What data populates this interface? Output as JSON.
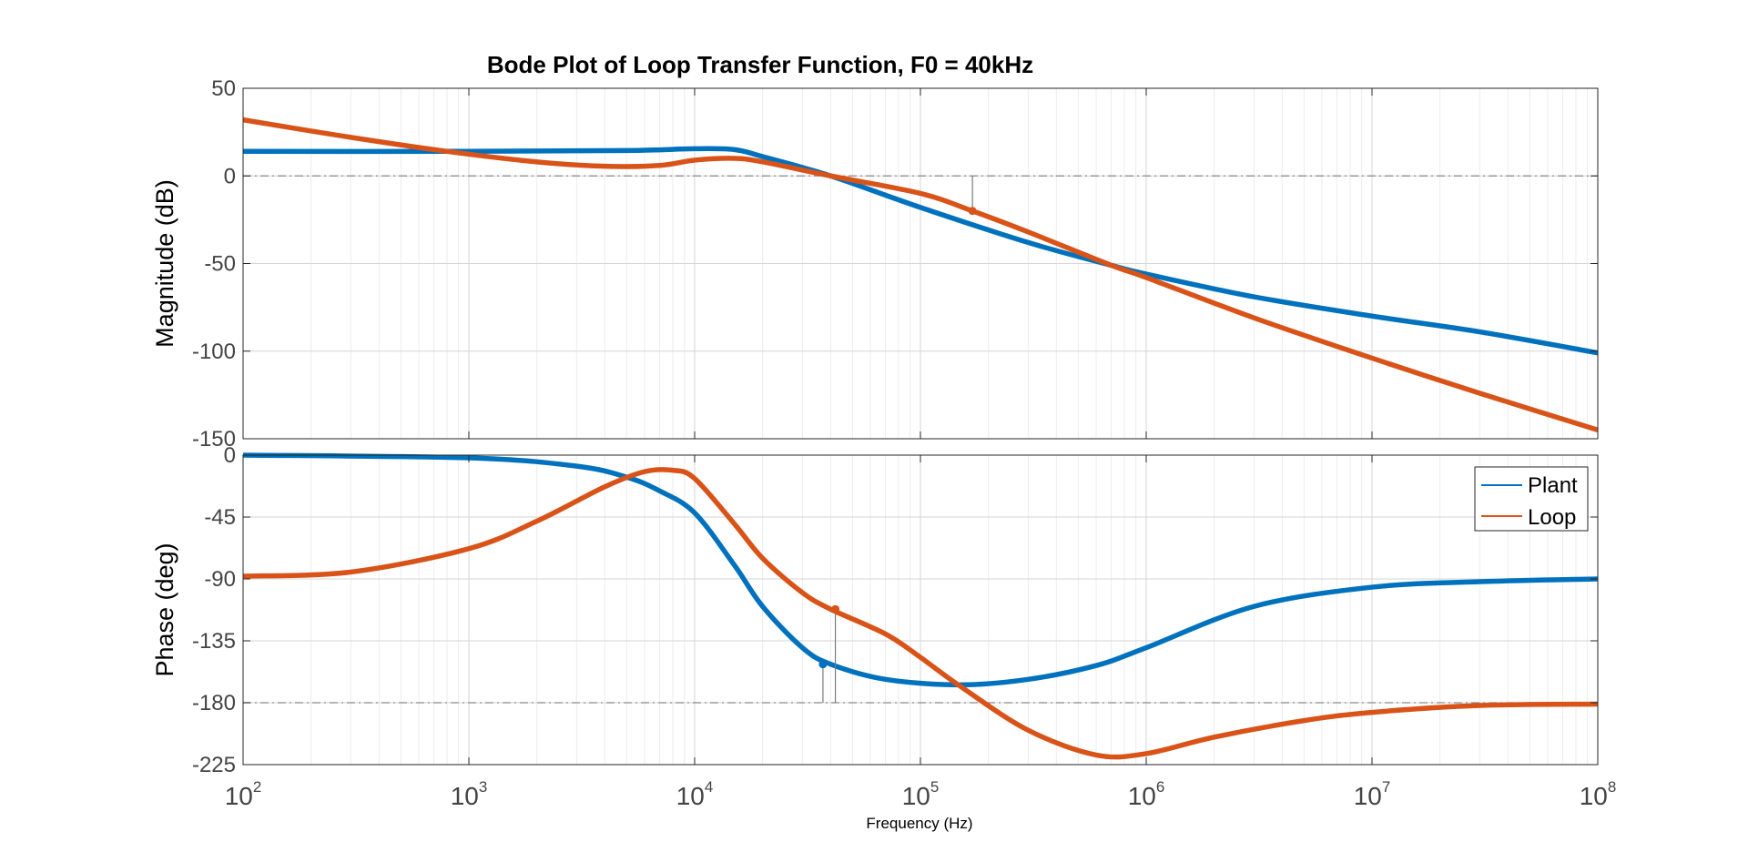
{
  "chart_data": {
    "type": "line",
    "title": "Bode Plot of Loop Transfer Function, F0 = 40kHz",
    "xlabel": "Frequency  (Hz)",
    "xscale": "log",
    "xlim": [
      100,
      100000000
    ],
    "x_ticks": [
      {
        "base": "10",
        "exp": "2"
      },
      {
        "base": "10",
        "exp": "3"
      },
      {
        "base": "10",
        "exp": "4"
      },
      {
        "base": "10",
        "exp": "5"
      },
      {
        "base": "10",
        "exp": "6"
      },
      {
        "base": "10",
        "exp": "7"
      },
      {
        "base": "10",
        "exp": "8"
      }
    ],
    "grid": true,
    "legend": {
      "placement": "top-right of phase panel",
      "entries": [
        "Plant",
        "Loop"
      ]
    },
    "colors": {
      "Plant": "#0072BD",
      "Loop": "#D95319"
    },
    "panels": [
      {
        "name": "magnitude",
        "ylabel": "Magnitude (dB)",
        "ylim": [
          -150,
          50
        ],
        "yticks": [
          50,
          0,
          -50,
          -100,
          -150
        ],
        "reference_line": 0,
        "series": [
          {
            "name": "Plant",
            "x": [
              100,
              1000,
              5000,
              10000,
              15000,
              20000,
              40000,
              100000,
              300000,
              700000,
              1000000,
              3000000,
              10000000,
              30000000,
              100000000
            ],
            "y": [
              14,
              14,
              14.5,
              15.5,
              15,
              11,
              0,
              -18,
              -38,
              -51,
              -56,
              -69,
              -80,
              -89,
              -101
            ]
          },
          {
            "name": "Loop",
            "x": [
              100,
              300,
              800,
              2000,
              4000,
              7000,
              10000,
              15000,
              20000,
              40000,
              100000,
              170000,
              300000,
              700000,
              1000000,
              3000000,
              10000000,
              30000000,
              100000000
            ],
            "y": [
              32,
              22,
              14,
              8,
              5.5,
              6,
              9,
              10,
              8,
              0,
              -10,
              -20,
              -32,
              -51,
              -58,
              -81,
              -104,
              -124,
              -145
            ]
          }
        ],
        "markers": [
          {
            "series": "Loop",
            "x": 170000,
            "y": -20,
            "ref": 0
          }
        ]
      },
      {
        "name": "phase",
        "ylabel": "Phase (deg)",
        "ylim": [
          -225,
          0
        ],
        "yticks": [
          0,
          -45,
          -90,
          -135,
          -180,
          -225
        ],
        "reference_line": -180,
        "series": [
          {
            "name": "Plant",
            "x": [
              100,
              1000,
              3000,
              5000,
              7000,
              10000,
              15000,
              20000,
              30000,
              40000,
              70000,
              150000,
              300000,
              600000,
              1000000,
              3000000,
              10000000,
              30000000,
              100000000
            ],
            "y": [
              0,
              -2,
              -8,
              -16,
              -26,
              -42,
              -80,
              -110,
              -140,
              -152,
              -163,
              -167,
              -163,
              -153,
              -140,
              -110,
              -96,
              -92,
              -90
            ]
          },
          {
            "name": "Loop",
            "x": [
              100,
              300,
              1000,
              2000,
              4000,
              6000,
              8000,
              10000,
              15000,
              20000,
              30000,
              40000,
              70000,
              100000,
              150000,
              300000,
              600000,
              1000000,
              2000000,
              5000000,
              10000000,
              30000000,
              100000000
            ],
            "y": [
              -88,
              -85,
              -68,
              -48,
              -23,
              -12,
              -11,
              -17,
              -50,
              -75,
              -100,
              -112,
              -130,
              -147,
              -168,
              -200,
              -218,
              -217,
              -205,
              -193,
              -187,
              -182,
              -181
            ]
          }
        ],
        "markers": [
          {
            "series": "Plant",
            "x": 37000,
            "y": -152,
            "ref": -180
          },
          {
            "series": "Loop",
            "x": 42000,
            "y": -112,
            "ref": -180
          }
        ]
      }
    ]
  }
}
